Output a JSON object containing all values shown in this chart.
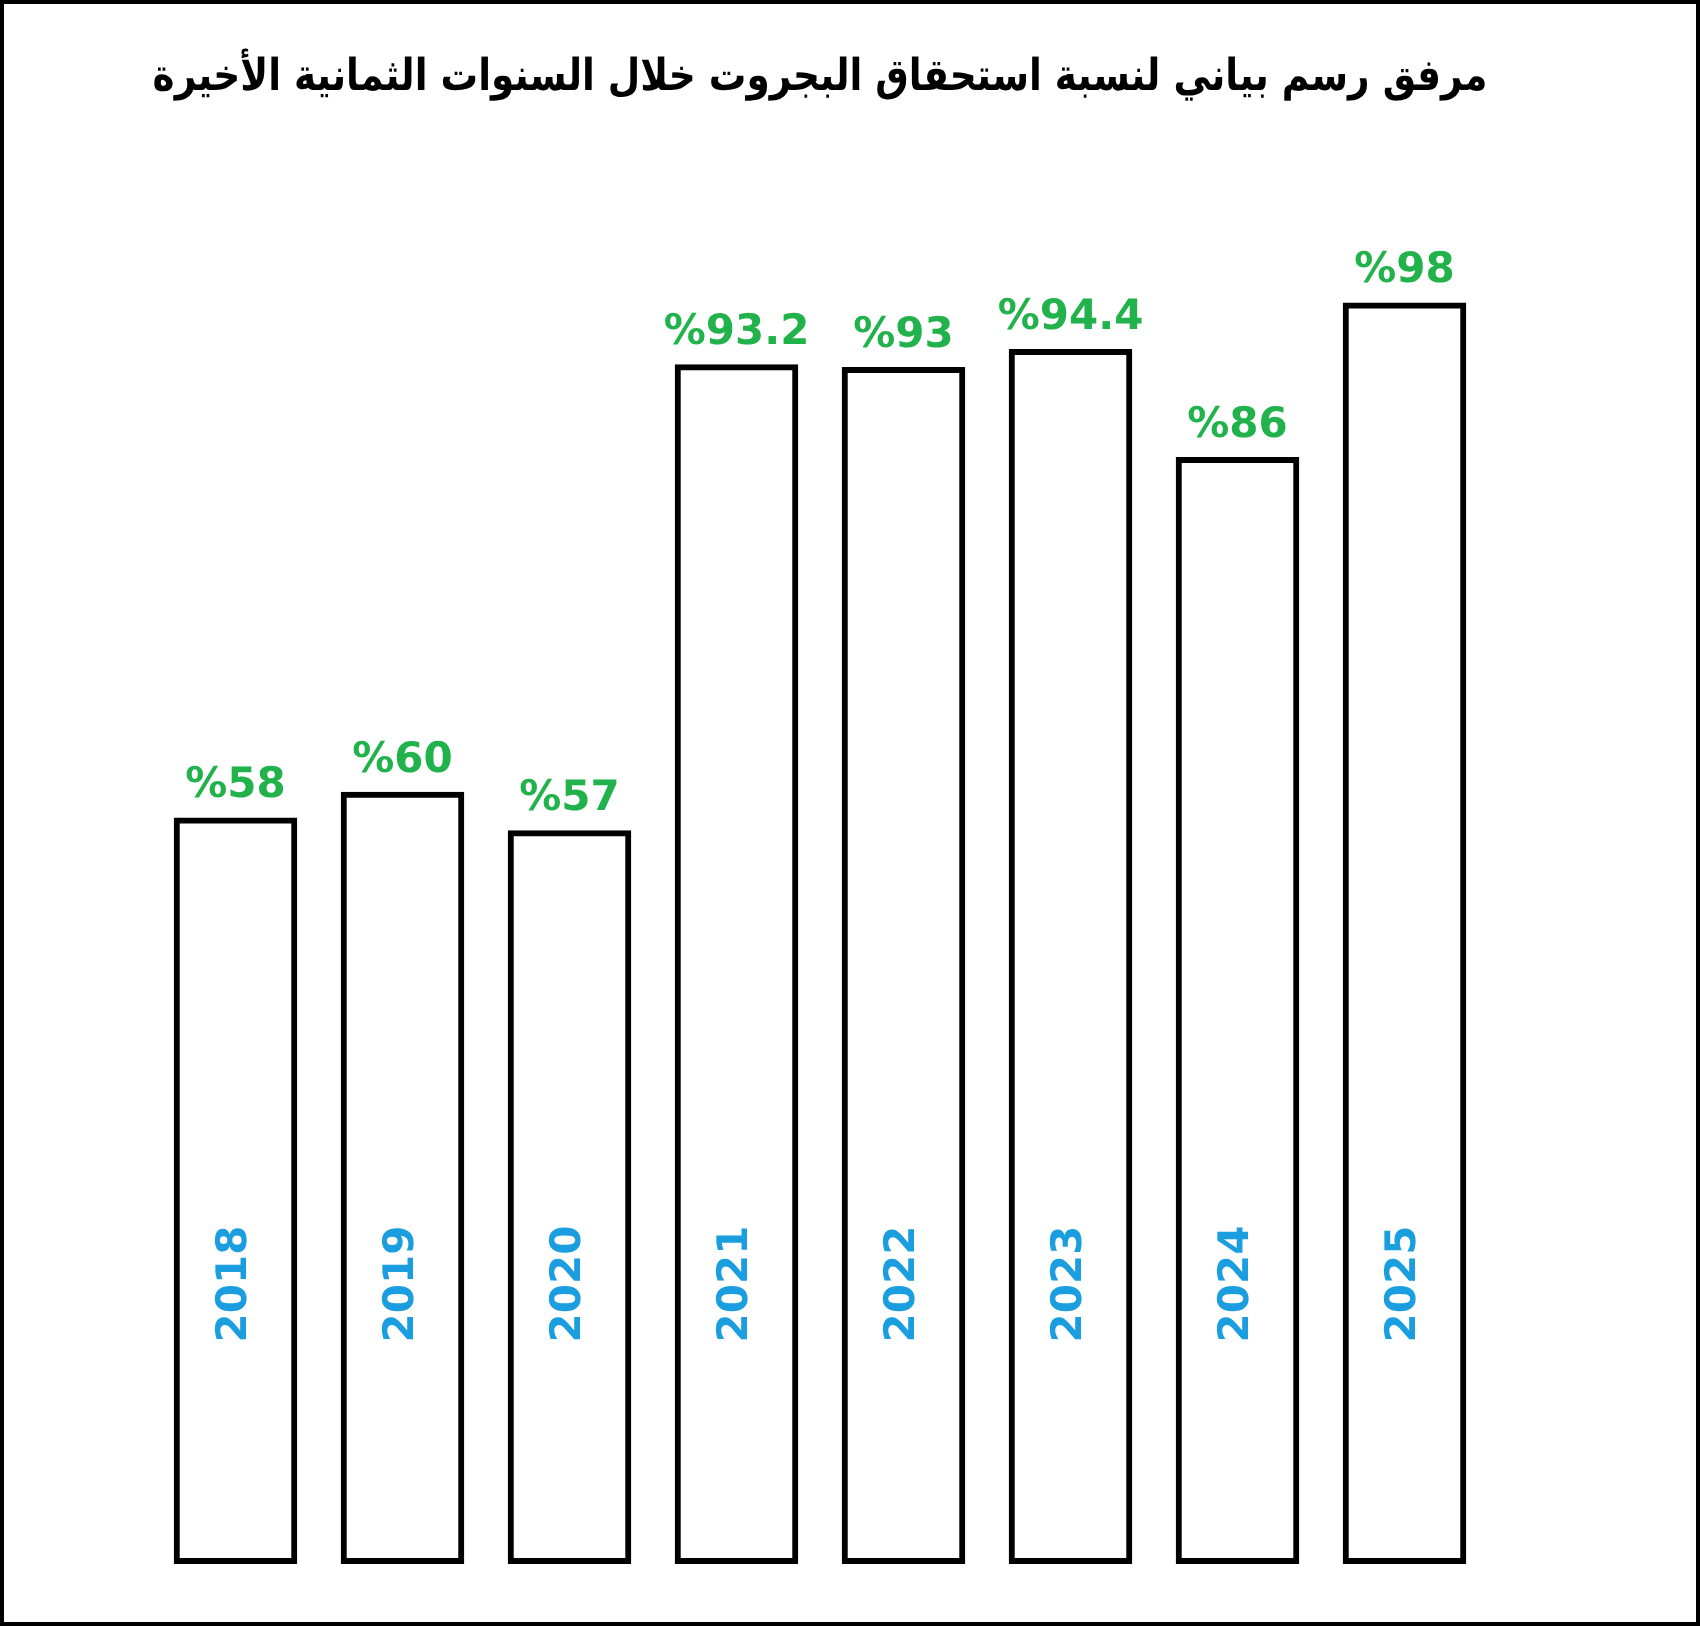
{
  "chart_data": {
    "type": "bar",
    "title": "مرفق رسم بياني لنسبة استحقاق البجروت خلال السنوات الثمانية الأخيرة",
    "categories": [
      "2018",
      "2019",
      "2020",
      "2021",
      "2022",
      "2023",
      "2024",
      "2025"
    ],
    "values": [
      58,
      60,
      57,
      93.2,
      93,
      94.4,
      86,
      98
    ],
    "value_labels": [
      "%58",
      "%60",
      "%57",
      "%93.2",
      "%93",
      "%94.4",
      "%86",
      "%98"
    ],
    "color": "#000000",
    "tick_labels": "x"
  }
}
